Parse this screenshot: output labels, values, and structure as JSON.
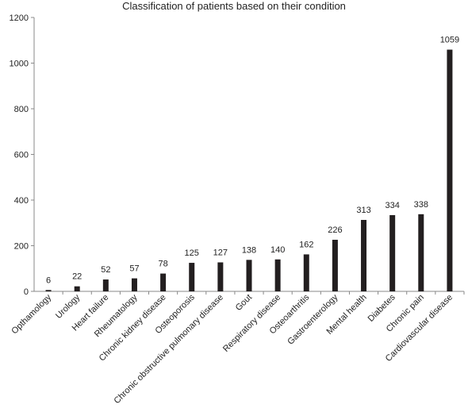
{
  "chart_data": {
    "type": "bar",
    "title": "Classification of patients based on their condition",
    "xlabel": "",
    "ylabel": "",
    "ylim": [
      0,
      1200
    ],
    "yticks": [
      0,
      200,
      400,
      600,
      800,
      1000,
      1200
    ],
    "grid": false,
    "bar_color": "#231f20",
    "categories": [
      "Opthamology",
      "Urology",
      "Heart failure",
      "Rheumatology",
      "Chronic kidney disease",
      "Osteoporosis",
      "Chronic obstructive pulmonary disease",
      "Gout",
      "Respiratory disease",
      "Osteoarthritis",
      "Gastroenterology",
      "Mental health",
      "Diabetes",
      "Chronic pain",
      "Cardiovascular disease"
    ],
    "values": [
      6,
      22,
      52,
      57,
      78,
      125,
      127,
      138,
      140,
      162,
      226,
      313,
      334,
      338,
      1059
    ]
  }
}
